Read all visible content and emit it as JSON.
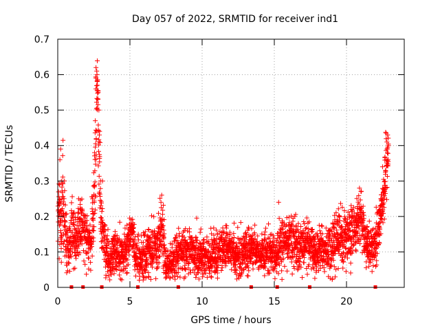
{
  "chart_data": {
    "type": "scatter",
    "title": "Day 057 of 2022, SRMTID for receiver ind1",
    "xlabel": "GPS time / hours",
    "ylabel": "SRMTID / TECUs",
    "xlim": [
      0,
      24
    ],
    "ylim": [
      0,
      0.7
    ],
    "xticks": [
      0,
      5,
      10,
      15,
      20
    ],
    "yticks": [
      0,
      0.1,
      0.2,
      0.3,
      0.4,
      0.5,
      0.6,
      0.7
    ],
    "grid": true,
    "marker": "+",
    "color": "#ff0000",
    "series": [
      {
        "name": "SRMTID",
        "profile": [
          [
            0.0,
            0.14,
            0.07
          ],
          [
            0.1,
            0.22,
            0.06
          ],
          [
            0.25,
            0.16,
            0.06
          ],
          [
            0.35,
            0.3,
            0.08
          ],
          [
            0.5,
            0.15,
            0.06
          ],
          [
            0.7,
            0.12,
            0.05
          ],
          [
            1.0,
            0.15,
            0.06
          ],
          [
            1.3,
            0.13,
            0.05
          ],
          [
            1.6,
            0.19,
            0.05
          ],
          [
            1.9,
            0.16,
            0.06
          ],
          [
            2.1,
            0.11,
            0.04
          ],
          [
            2.3,
            0.13,
            0.05
          ],
          [
            2.5,
            0.22,
            0.08
          ],
          [
            2.65,
            0.45,
            0.12
          ],
          [
            2.75,
            0.58,
            0.04
          ],
          [
            2.9,
            0.3,
            0.1
          ],
          [
            3.05,
            0.17,
            0.05
          ],
          [
            3.3,
            0.11,
            0.04
          ],
          [
            3.6,
            0.08,
            0.04
          ],
          [
            4.0,
            0.1,
            0.04
          ],
          [
            4.5,
            0.09,
            0.04
          ],
          [
            4.9,
            0.13,
            0.05
          ],
          [
            5.1,
            0.17,
            0.04
          ],
          [
            5.4,
            0.09,
            0.04
          ],
          [
            5.8,
            0.08,
            0.04
          ],
          [
            6.2,
            0.1,
            0.04
          ],
          [
            6.6,
            0.11,
            0.04
          ],
          [
            7.0,
            0.12,
            0.05
          ],
          [
            7.2,
            0.18,
            0.06
          ],
          [
            7.5,
            0.06,
            0.03
          ],
          [
            7.9,
            0.07,
            0.03
          ],
          [
            8.3,
            0.09,
            0.04
          ],
          [
            8.8,
            0.1,
            0.04
          ],
          [
            9.2,
            0.11,
            0.04
          ],
          [
            9.6,
            0.09,
            0.04
          ],
          [
            10.0,
            0.08,
            0.04
          ],
          [
            10.5,
            0.09,
            0.04
          ],
          [
            11.0,
            0.1,
            0.04
          ],
          [
            11.5,
            0.11,
            0.04
          ],
          [
            12.0,
            0.1,
            0.04
          ],
          [
            12.5,
            0.09,
            0.04
          ],
          [
            13.0,
            0.1,
            0.04
          ],
          [
            13.5,
            0.11,
            0.04
          ],
          [
            14.0,
            0.09,
            0.04
          ],
          [
            14.5,
            0.1,
            0.04
          ],
          [
            15.0,
            0.09,
            0.04
          ],
          [
            15.4,
            0.11,
            0.04
          ],
          [
            15.8,
            0.14,
            0.05
          ],
          [
            16.2,
            0.13,
            0.05
          ],
          [
            16.6,
            0.12,
            0.05
          ],
          [
            17.0,
            0.11,
            0.04
          ],
          [
            17.4,
            0.12,
            0.05
          ],
          [
            17.8,
            0.1,
            0.04
          ],
          [
            18.2,
            0.11,
            0.04
          ],
          [
            18.6,
            0.1,
            0.04
          ],
          [
            19.0,
            0.12,
            0.05
          ],
          [
            19.4,
            0.14,
            0.05
          ],
          [
            19.8,
            0.13,
            0.05
          ],
          [
            20.2,
            0.15,
            0.05
          ],
          [
            20.6,
            0.17,
            0.05
          ],
          [
            21.0,
            0.2,
            0.05
          ],
          [
            21.3,
            0.13,
            0.05
          ],
          [
            21.6,
            0.1,
            0.04
          ],
          [
            21.9,
            0.11,
            0.04
          ],
          [
            22.2,
            0.18,
            0.05
          ],
          [
            22.5,
            0.22,
            0.05
          ],
          [
            22.7,
            0.32,
            0.07
          ],
          [
            22.9,
            0.38,
            0.05
          ]
        ],
        "spikes": [
          [
            0.15,
            0.36
          ],
          [
            0.2,
            0.39
          ],
          [
            0.25,
            0.3
          ],
          [
            2.65,
            0.62
          ],
          [
            2.7,
            0.61
          ],
          [
            2.72,
            0.6
          ],
          [
            2.75,
            0.57
          ],
          [
            2.8,
            0.55
          ],
          [
            2.78,
            0.53
          ],
          [
            2.85,
            0.5
          ],
          [
            2.6,
            0.47
          ],
          [
            2.9,
            0.44
          ],
          [
            2.55,
            0.38
          ],
          [
            3.1,
            0.3
          ],
          [
            7.2,
            0.26
          ],
          [
            7.15,
            0.24
          ],
          [
            15.3,
            0.24
          ],
          [
            20.9,
            0.28
          ],
          [
            21.0,
            0.27
          ],
          [
            22.85,
            0.43
          ],
          [
            22.8,
            0.41
          ],
          [
            22.9,
            0.4
          ],
          [
            22.75,
            0.36
          ],
          [
            22.7,
            0.33
          ]
        ],
        "baseline_gaps": [
          0.95,
          1.75,
          3.05,
          5.55,
          8.35,
          13.4,
          15.2,
          17.45,
          22.0
        ]
      }
    ]
  }
}
